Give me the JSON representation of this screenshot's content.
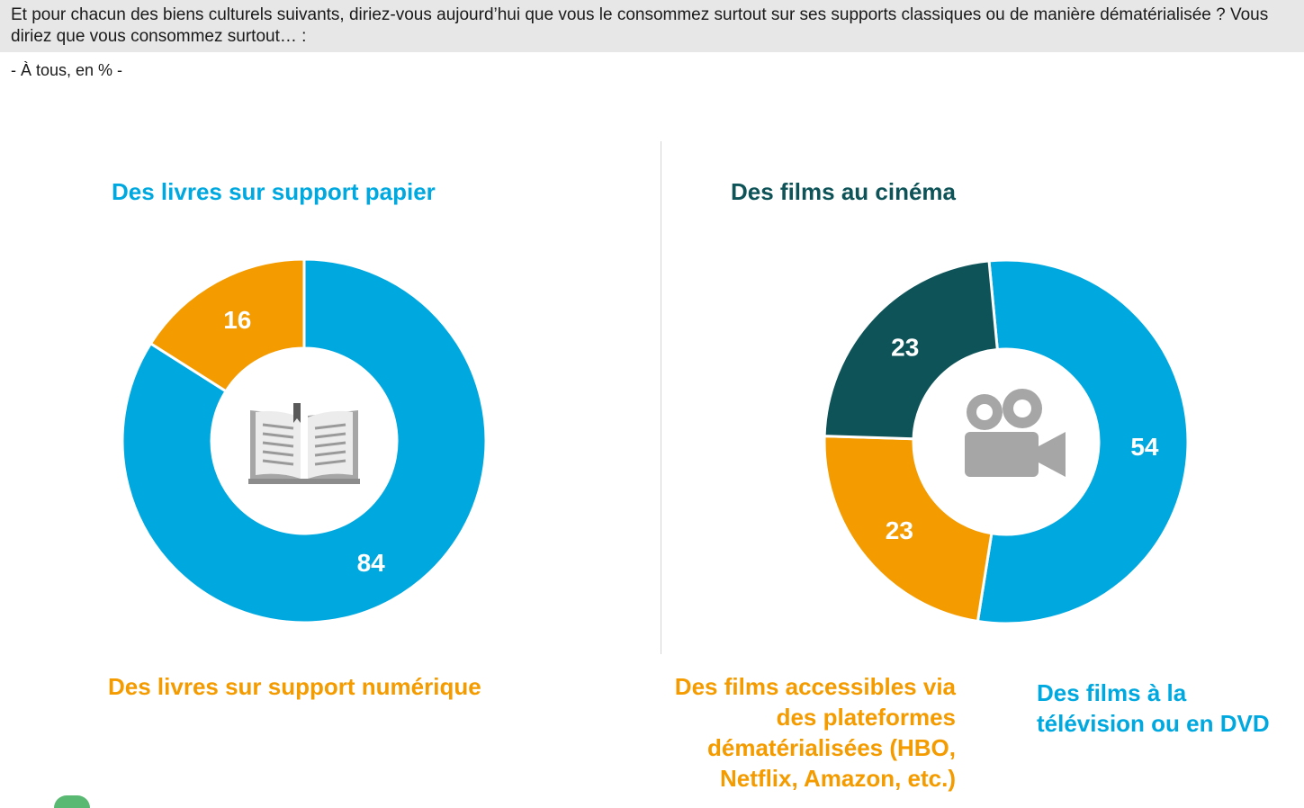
{
  "question": {
    "text": "Et pour chacun des biens culturels suivants, diriez-vous aujourd’hui que vous le consommez surtout sur ses supports classiques ou de manière dématérialisée ? Vous diriez que vous consommez surtout… :",
    "base": "- À tous, en % -"
  },
  "colors": {
    "blue": "#00a8e0",
    "orange": "#f49b00",
    "dark_teal": "#0d5358",
    "center_icon": "#a6a6a6"
  },
  "chart_data": [
    {
      "type": "pie",
      "style": "donut",
      "title": "Des livres sur support papier",
      "center_icon": "open-book-icon",
      "slices": [
        {
          "name": "Des livres sur support papier",
          "value": 84,
          "color": "#00a8e0"
        },
        {
          "name": "Des livres sur support numérique",
          "value": 16,
          "color": "#f49b00"
        }
      ]
    },
    {
      "type": "pie",
      "style": "donut",
      "title": "Des films au cinéma",
      "center_icon": "movie-camera-icon",
      "slices": [
        {
          "name": "Des films à la télévision ou en DVD",
          "value": 54,
          "color": "#00a8e0"
        },
        {
          "name": "Des films accessibles via des plateformes dématérialisées (HBO, Netflix, Amazon, etc.)",
          "value": 23,
          "color": "#f49b00"
        },
        {
          "name": "Des films au cinéma",
          "value": 23,
          "color": "#0d5358"
        }
      ]
    }
  ],
  "labels": {
    "left_numeric": "Des livres sur support numérique",
    "right_platforms": "Des films accessibles via des plateformes dématérialisées (HBO, Netflix, Amazon, etc.)",
    "right_tv": "Des films à la télévision ou en DVD"
  }
}
